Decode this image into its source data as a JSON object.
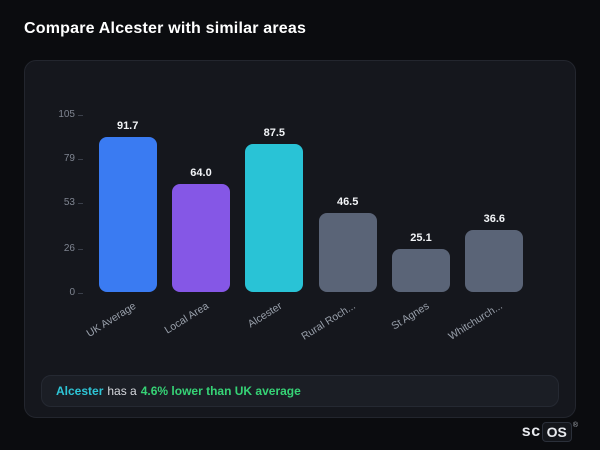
{
  "page": {
    "title": "Compare Alcester with similar areas"
  },
  "chart_data": {
    "type": "bar",
    "categories": [
      "UK Average",
      "Local Area",
      "Alcester",
      "Rural Roch...",
      "St Agnes",
      "Whitchurch..."
    ],
    "values": [
      91.7,
      64.0,
      87.5,
      46.5,
      25.1,
      36.6
    ],
    "value_labels": [
      "91.7",
      "64.0",
      "87.5",
      "46.5",
      "25.1",
      "36.6"
    ],
    "bar_colors": [
      "#3a7bf2",
      "#8557e6",
      "#29c3d6",
      "#5a6477",
      "#5a6477",
      "#5a6477"
    ],
    "title": "",
    "xlabel": "",
    "ylabel": "Crimes per 1,000",
    "yticks": [
      0,
      26,
      53,
      79,
      105
    ],
    "ylim": [
      0,
      105
    ],
    "grid": false,
    "legend": false
  },
  "summary": {
    "area": "Alcester",
    "middle": "has a",
    "stat": "4.6% lower than UK average"
  },
  "logo": {
    "prefix": "sc",
    "boxed": "OS",
    "reg": "®"
  }
}
